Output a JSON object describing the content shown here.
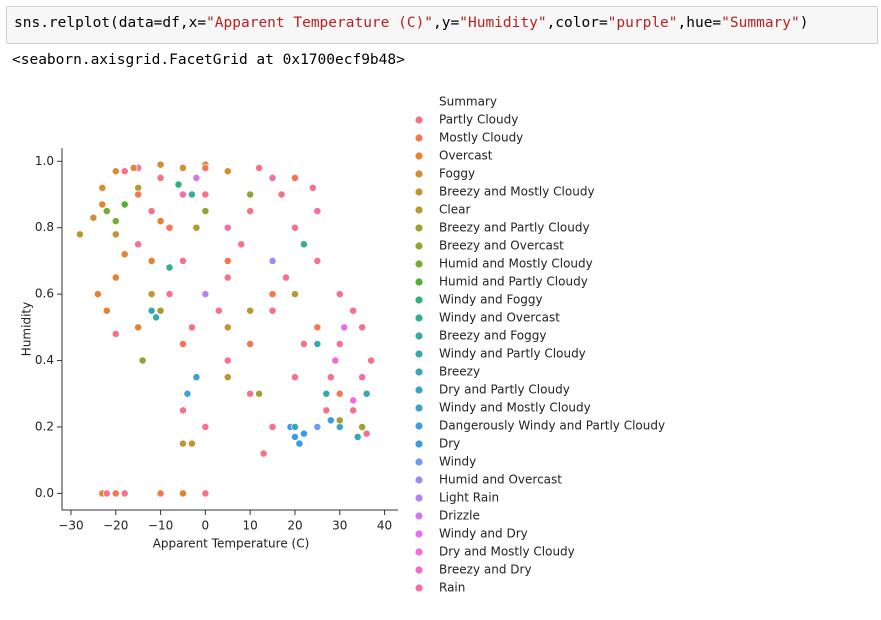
{
  "cell": {
    "code": [
      "sns.relplot(data=df,x=",
      "\"Apparent Temperature (C)\"",
      ",y=",
      "\"Humidity\"",
      ",color=",
      "\"purple\"",
      ",hue=",
      "\"Summary\"",
      ")"
    ],
    "output": "<seaborn.axisgrid.FacetGrid at 0x1700ecf9b48>"
  },
  "chart_data": {
    "type": "scatter",
    "x_label": "Apparent Temperature (C)",
    "y_label": "Humidity",
    "legend_title": "Summary",
    "xlim": [
      -32,
      43
    ],
    "ylim": [
      -0.05,
      1.04
    ],
    "xticks": [
      {
        "value": -30,
        "label": "−30"
      },
      {
        "value": -20,
        "label": "−20"
      },
      {
        "value": -10,
        "label": "−10"
      },
      0,
      10,
      20,
      30,
      40
    ],
    "yticks": [
      {
        "value": 0,
        "label": "0.0"
      },
      0.2,
      0.4,
      0.6,
      0.8,
      {
        "value": 1,
        "label": "1.0"
      }
    ],
    "series": [
      {
        "name": "Partly Cloudy",
        "color": "#f77189",
        "x": [
          -18,
          -10,
          0,
          10,
          20,
          25,
          30,
          35,
          37,
          -15,
          -5,
          5,
          15,
          22,
          28,
          33,
          36,
          -3,
          5,
          10,
          15,
          13,
          -5,
          0,
          -20,
          -22,
          -18,
          0,
          8,
          18,
          24,
          12,
          3,
          -8,
          30,
          27,
          20,
          -12,
          17,
          33
        ],
        "values": [
          0.97,
          0.95,
          0.9,
          0.85,
          0.8,
          0.7,
          0.6,
          0.5,
          0.4,
          0.75,
          0.7,
          0.65,
          0.55,
          0.45,
          0.35,
          0.25,
          0.18,
          0.5,
          0.4,
          0.3,
          0.2,
          0.12,
          0.25,
          0.2,
          0.48,
          0,
          0,
          0,
          0.75,
          0.65,
          0.92,
          0.98,
          0.55,
          0.6,
          0.45,
          0.25,
          0.35,
          0.85,
          0.9,
          0.55
        ]
      },
      {
        "name": "Mostly Cloudy",
        "color": "#f7754f",
        "x": [
          -15,
          -8,
          5,
          15,
          25,
          -5,
          0,
          20,
          10,
          -10,
          -20,
          30
        ],
        "values": [
          0.9,
          0.8,
          0.7,
          0.6,
          0.5,
          0.45,
          0.98,
          0.95,
          0.45,
          0,
          0,
          0.3
        ]
      },
      {
        "name": "Overcast",
        "color": "#e7802f",
        "x": [
          -23,
          -20,
          -22,
          -24,
          -18,
          -15,
          -10,
          -5,
          -23,
          -12
        ],
        "values": [
          0.87,
          0.65,
          0.55,
          0.6,
          0.72,
          0.5,
          0.82,
          0,
          0,
          0.7
        ]
      },
      {
        "name": "Foggy",
        "color": "#d58c32",
        "x": [
          -23,
          -20,
          -16,
          -10,
          -5,
          0,
          5,
          -25
        ],
        "values": [
          0.92,
          0.97,
          0.98,
          0.99,
          0.98,
          0.99,
          0.97,
          0.83
        ]
      },
      {
        "name": "Breezy and Mostly Cloudy",
        "color": "#c39532",
        "x": [
          -20,
          -12,
          -5,
          -3,
          5
        ],
        "values": [
          0.78,
          0.6,
          0.15,
          0.15,
          0.5
        ]
      },
      {
        "name": "Clear",
        "color": "#b39b31",
        "x": [
          -28,
          -15,
          5,
          10,
          20,
          -2
        ],
        "values": [
          0.78,
          0.92,
          0.35,
          0.55,
          0.6,
          0.8
        ]
      },
      {
        "name": "Breezy and Partly Cloudy",
        "color": "#a19f31",
        "x": [
          -10,
          30,
          35,
          12
        ],
        "values": [
          0.55,
          0.22,
          0.2,
          0.3
        ]
      },
      {
        "name": "Breezy and Overcast",
        "color": "#8ea531",
        "x": [
          -14,
          0,
          10
        ],
        "values": [
          0.4,
          0.85,
          0.9
        ]
      },
      {
        "name": "Humid and Mostly Cloudy",
        "color": "#77ab31",
        "x": [
          -20,
          -22
        ],
        "values": [
          0.82,
          0.85
        ]
      },
      {
        "name": "Humid and Partly Cloudy",
        "color": "#4fb031",
        "x": [
          -18
        ],
        "values": [
          0.87
        ]
      },
      {
        "name": "Windy and Foggy",
        "color": "#33b07a",
        "x": [
          -6
        ],
        "values": [
          0.93
        ]
      },
      {
        "name": "Windy and Overcast",
        "color": "#34ae8f",
        "x": [
          -8,
          22
        ],
        "values": [
          0.68,
          0.75
        ]
      },
      {
        "name": "Breezy and Foggy",
        "color": "#35ac9c",
        "x": [
          -3
        ],
        "values": [
          0.9
        ]
      },
      {
        "name": "Windy and Partly Cloudy",
        "color": "#36aaa8",
        "x": [
          -12,
          27
        ],
        "values": [
          0.55,
          0.3
        ]
      },
      {
        "name": "Breezy",
        "color": "#37a8b4",
        "x": [
          -11,
          25,
          36
        ],
        "values": [
          0.53,
          0.45,
          0.3
        ]
      },
      {
        "name": "Dry and Partly Cloudy",
        "color": "#38a6c0",
        "x": [
          30,
          34
        ],
        "values": [
          0.2,
          0.17
        ]
      },
      {
        "name": "Windy and Mostly Cloudy",
        "color": "#3aa3cc",
        "x": [
          20,
          -2
        ],
        "values": [
          0.2,
          0.35
        ]
      },
      {
        "name": "Dangerously Windy and Partly Cloudy",
        "color": "#3ba0db",
        "x": [
          -4
        ],
        "values": [
          0.3
        ]
      },
      {
        "name": "Dry",
        "color": "#3b9ae8",
        "x": [
          21,
          20,
          22,
          19,
          28
        ],
        "values": [
          0.15,
          0.17,
          0.18,
          0.2,
          0.22
        ]
      },
      {
        "name": "Windy",
        "color": "#6e9bf4",
        "x": [
          25
        ],
        "values": [
          0.2
        ]
      },
      {
        "name": "Humid and Overcast",
        "color": "#948ff4",
        "x": [
          15
        ],
        "values": [
          0.7
        ]
      },
      {
        "name": "Light Rain",
        "color": "#b482f4",
        "x": [
          0
        ],
        "values": [
          0.6
        ]
      },
      {
        "name": "Drizzle",
        "color": "#cc7af4",
        "x": [
          -2
        ],
        "values": [
          0.95
        ]
      },
      {
        "name": "Windy and Dry",
        "color": "#e56ff0",
        "x": [
          31
        ],
        "values": [
          0.5
        ]
      },
      {
        "name": "Dry and Mostly Cloudy",
        "color": "#f46ae0",
        "x": [
          33
        ],
        "values": [
          0.28
        ]
      },
      {
        "name": "Breezy and Dry",
        "color": "#f56cc4",
        "x": [
          29
        ],
        "values": [
          0.4
        ]
      },
      {
        "name": "Rain",
        "color": "#f66ea9",
        "x": [
          5,
          15,
          25,
          -5,
          35,
          -15
        ],
        "values": [
          0.8,
          0.95,
          0.85,
          0.9,
          0.35,
          0.98
        ]
      }
    ]
  }
}
